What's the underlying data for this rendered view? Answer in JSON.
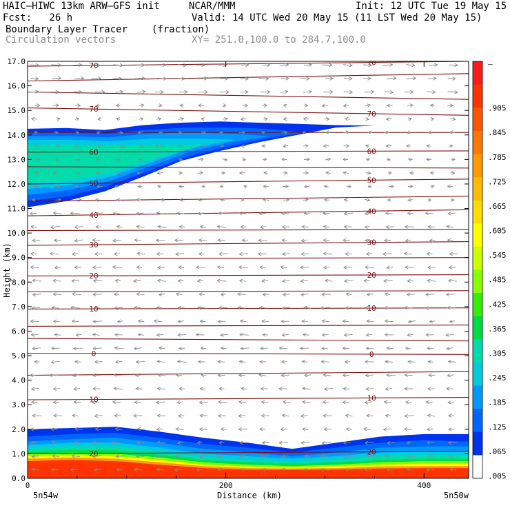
{
  "header": {
    "model": "HAIC–HIWC 13km ARW–GFS init",
    "org": "NCAR/MMM",
    "init": "Init: 12 UTC Tue 19 May 15",
    "fcst": "Fcst:   26 h",
    "valid": "Valid: 14 UTC Wed 20 May 15 (11 LST Wed 20 May 15)",
    "field": "Boundary Layer Tracer",
    "units": "(fraction)",
    "overlay": "Circulation vectors",
    "xy": "XY= 251.0,100.0 to 284.7,100.0"
  },
  "chart_data": {
    "type": "heatmap",
    "xlabel": "Distance (km)",
    "ylabel": "Height (km)",
    "xlim": [
      0,
      445
    ],
    "ylim": [
      0,
      17
    ],
    "x_ticks": [
      0,
      200,
      400
    ],
    "y_ticks": [
      "0.0",
      "1.0",
      "2.0",
      "3.0",
      "4.0",
      "5.0",
      "6.0",
      "7.0",
      "8.0",
      "9.0",
      "10.0",
      "11.0",
      "12.0",
      "13.0",
      "14.0",
      "15.0",
      "16.0",
      "17.0"
    ],
    "x_end_labels": {
      "left": "5n54w",
      "right": "5n50w"
    },
    "colorbar": {
      "labels": [
        "–",
        ".905",
        ".845",
        ".785",
        ".725",
        ".665",
        ".605",
        ".545",
        ".485",
        ".425",
        ".365",
        ".305",
        ".245",
        ".185",
        ".125",
        ".065",
        ".005"
      ],
      "colors": [
        "#ff1a1a",
        "#ff3300",
        "#ff5500",
        "#ff7700",
        "#ff9900",
        "#ffbb00",
        "#ffdd00",
        "#ffff00",
        "#ccff00",
        "#88ff00",
        "#33ee00",
        "#00dd44",
        "#00ddaa",
        "#00ccdd",
        "#0099ff",
        "#0066ff",
        "#0033ee",
        "#ffffff"
      ]
    },
    "temperature_contours": [
      {
        "label": "70",
        "z": [
          16.8,
          17.0
        ]
      },
      {
        "label": "",
        "z": [
          16.2,
          16.5
        ]
      },
      {
        "label": "",
        "z": [
          15.75,
          15.45
        ]
      },
      {
        "label": "70",
        "z": [
          15.1,
          14.8
        ]
      },
      {
        "label": "",
        "z": [
          14.1,
          14.1
        ]
      },
      {
        "label": "60",
        "z": [
          13.3,
          13.35
        ]
      },
      {
        "label": "",
        "z": [
          12.7,
          12.65
        ]
      },
      {
        "label": "50",
        "z": [
          12.0,
          12.2
        ]
      },
      {
        "label": "",
        "z": [
          11.3,
          11.5
        ]
      },
      {
        "label": "40",
        "z": [
          10.7,
          10.95
        ]
      },
      {
        "label": "",
        "z": [
          10.1,
          10.15
        ]
      },
      {
        "label": "30",
        "z": [
          9.5,
          9.65
        ]
      },
      {
        "label": "",
        "z": [
          8.95,
          9.0
        ]
      },
      {
        "label": "20",
        "z": [
          8.25,
          8.3
        ]
      },
      {
        "label": "",
        "z": [
          7.6,
          7.65
        ]
      },
      {
        "label": "10",
        "z": [
          6.9,
          6.95
        ]
      },
      {
        "label": "",
        "z": [
          6.2,
          6.25
        ]
      },
      {
        "label": "",
        "z": [
          5.7,
          5.6
        ]
      },
      {
        "label": "0",
        "z": [
          5.1,
          5.05
        ]
      },
      {
        "label": "",
        "z": [
          4.2,
          4.35
        ]
      },
      {
        "label": "10",
        "z": [
          3.2,
          3.3
        ]
      },
      {
        "label": "20",
        "z": [
          1.0,
          1.1
        ]
      }
    ],
    "tracer_layers": [
      {
        "value": 0.035,
        "region": "upper",
        "z_bottom": [
          11.05,
          11.3,
          11.7,
          12.3,
          12.95,
          13.35,
          13.7,
          14.0,
          14.3,
          14.38
        ],
        "z_top": [
          14.25,
          14.28,
          14.2,
          14.4,
          14.5,
          14.55,
          14.5,
          14.45,
          14.4,
          14.38
        ]
      },
      {
        "value": 0.095,
        "region": "upper",
        "z_bottom": [
          11.3,
          11.5,
          11.9,
          12.5,
          13.1,
          13.5,
          13.85,
          14.1
        ],
        "z_top": [
          14.1,
          14.1,
          14.05,
          14.2,
          14.3,
          14.3,
          14.25,
          14.1
        ]
      },
      {
        "value": 0.155,
        "region": "upper",
        "z_bottom": [
          11.55,
          11.75,
          12.1,
          12.7,
          13.3,
          13.7,
          13.95
        ],
        "z_top": [
          13.95,
          13.95,
          13.9,
          14.05,
          14.1,
          14.05,
          13.95
        ]
      },
      {
        "value": 0.215,
        "region": "upper",
        "z_bottom": [
          11.8,
          11.95,
          12.3,
          12.9,
          13.5,
          13.8
        ],
        "z_top": [
          13.8,
          13.8,
          13.75,
          13.85,
          13.85,
          13.8
        ]
      },
      {
        "value": 0.275,
        "region": "upper",
        "z_bottom": [
          12.05,
          12.15,
          12.5,
          13.1,
          13.55
        ],
        "z_top": [
          13.6,
          13.6,
          13.55,
          13.6,
          13.55
        ]
      },
      {
        "value": 0.035,
        "region": "lower",
        "z_top": [
          2.0,
          2.05,
          2.1,
          1.9,
          1.65,
          1.45,
          1.2,
          1.45,
          1.7,
          1.8,
          1.8
        ],
        "z_bottom": [
          0,
          0,
          0,
          0,
          0,
          0,
          0,
          0,
          0,
          0,
          0
        ]
      },
      {
        "value": 0.095,
        "region": "lower",
        "z_top": [
          1.7,
          1.8,
          1.85,
          1.65,
          1.4,
          1.25,
          1.05,
          1.25,
          1.45,
          1.55,
          1.5
        ]
      },
      {
        "value": 0.155,
        "region": "lower",
        "z_top": [
          1.5,
          1.6,
          1.65,
          1.45,
          1.2,
          1.05,
          0.9,
          1.05,
          1.25,
          1.3,
          1.3
        ]
      },
      {
        "value": 0.215,
        "region": "lower",
        "z_top": [
          1.35,
          1.45,
          1.45,
          1.25,
          1.0,
          0.9,
          0.8,
          0.9,
          1.05,
          1.1,
          1.1
        ]
      },
      {
        "value": 0.275,
        "region": "lower",
        "z_top": [
          1.2,
          1.3,
          1.3,
          1.1,
          0.85,
          0.75,
          0.7,
          0.75,
          0.9,
          0.95,
          0.95
        ]
      },
      {
        "value": 0.335,
        "region": "lower",
        "z_top": [
          1.1,
          1.15,
          1.15,
          0.95,
          0.75,
          0.65,
          0.6,
          0.65,
          0.75,
          0.8,
          0.8
        ]
      },
      {
        "value": 0.455,
        "region": "lower",
        "z_top": [
          1.0,
          1.05,
          1.0,
          0.85,
          0.65,
          0.55,
          0.5,
          0.55,
          0.65,
          0.7,
          0.7
        ]
      },
      {
        "value": 0.575,
        "region": "lower",
        "z_top": [
          0.9,
          0.95,
          0.9,
          0.75,
          0.55,
          0.48,
          0.45,
          0.5,
          0.55,
          0.6,
          0.6
        ]
      },
      {
        "value": 0.755,
        "region": "lower",
        "z_top": [
          0.8,
          0.85,
          0.8,
          0.65,
          0.5,
          0.42,
          0.4,
          0.42,
          0.48,
          0.5,
          0.5
        ]
      },
      {
        "value": 0.935,
        "region": "lower",
        "z_top": [
          0.7,
          0.75,
          0.7,
          0.55,
          0.42,
          0.35,
          0.35,
          0.36,
          0.4,
          0.42,
          0.42
        ]
      }
    ],
    "vectors": "grey circulation vectors over the full cross-section"
  }
}
